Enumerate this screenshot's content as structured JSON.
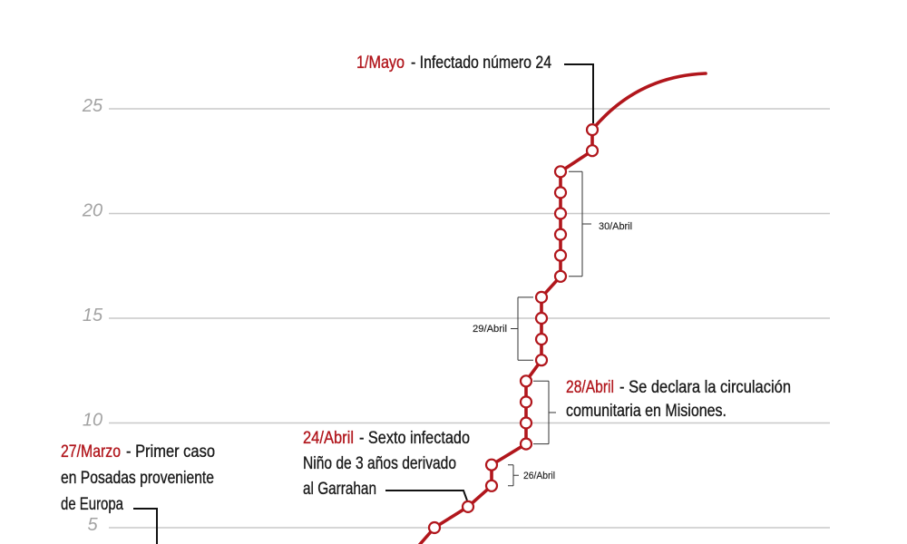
{
  "colors": {
    "accent": "#b1161c",
    "text": "#1a1a1a",
    "axis_labels": "#a3a3a3",
    "grid": "#c8c8c8"
  },
  "chart_data": {
    "type": "line",
    "ylim": [
      5,
      25
    ],
    "yticks": [
      5,
      10,
      15,
      20,
      25
    ],
    "grid": true,
    "series": [
      {
        "values": [
          5,
          6,
          7,
          8,
          9,
          10,
          11,
          12,
          13,
          14,
          15,
          16,
          17,
          18,
          19,
          20,
          21,
          22,
          23,
          24
        ],
        "color": "#b1161c"
      }
    ],
    "brackets": [
      {
        "label": "26/Abril",
        "from": 7,
        "to": 8
      },
      {
        "from": 9,
        "to": 12
      },
      {
        "label": "29/Abril",
        "from": 13,
        "to": 16
      },
      {
        "label": "30/Abril",
        "from": 17,
        "to": 22
      }
    ],
    "annotations": [
      {
        "date": "27/Marzo",
        "lines": [
          "- Primer caso",
          "en Posadas proveniente",
          "de Europa"
        ]
      },
      {
        "date": "24/Abril",
        "lines": [
          "- Sexto infectado",
          "Niño de 3 años derivado",
          "al Garrahan"
        ],
        "value": 6
      },
      {
        "date": "28/Abril",
        "lines": [
          "- Se declara la circulación",
          "comunitaria en Misiones."
        ]
      },
      {
        "date": "1/Mayo",
        "lines": [
          "- Infectado número 24"
        ],
        "value": 24
      }
    ]
  }
}
